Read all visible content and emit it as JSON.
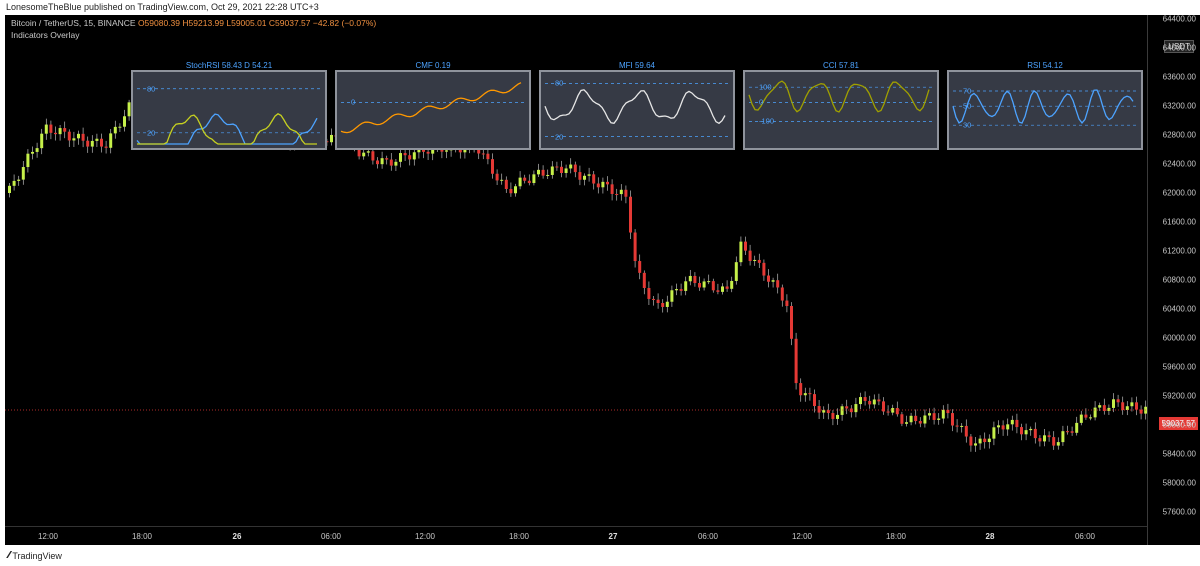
{
  "header": {
    "published": "LonesomeTheBlue published on TradingView.com, Oct 29, 2021 22:28 UTC+3"
  },
  "legend": {
    "symbol": "Bitcoin / TetherUS, 15, BINANCE",
    "open": "O59080.39",
    "high": "H59213.99",
    "low": "L59005.01",
    "close": "C59037.57",
    "change": "−42.82 (−0.07%)",
    "indicators": "Indicators Overlay"
  },
  "price_axis": {
    "currency": "USDT",
    "labels": [
      "64400.00",
      "64000.00",
      "63600.00",
      "63200.00",
      "62800.00",
      "62400.00",
      "62000.00",
      "61600.00",
      "61200.00",
      "60800.00",
      "60400.00",
      "60000.00",
      "59600.00",
      "59200.00",
      "58800.00",
      "58400.00",
      "58000.00",
      "57600.00"
    ],
    "current_price": "59037.57"
  },
  "time_axis": {
    "labels": [
      {
        "text": "12:00",
        "bold": false
      },
      {
        "text": "18:00",
        "bold": false
      },
      {
        "text": "26",
        "bold": true
      },
      {
        "text": "06:00",
        "bold": false
      },
      {
        "text": "12:00",
        "bold": false
      },
      {
        "text": "18:00",
        "bold": false
      },
      {
        "text": "27",
        "bold": true
      },
      {
        "text": "06:00",
        "bold": false
      },
      {
        "text": "12:00",
        "bold": false
      },
      {
        "text": "18:00",
        "bold": false
      },
      {
        "text": "28",
        "bold": true
      },
      {
        "text": "06:00",
        "bold": false
      }
    ]
  },
  "panels": [
    {
      "title": "StochRSI 58.43 D 54.21",
      "levels": [
        "80",
        "20"
      ]
    },
    {
      "title": "CMF 0.19",
      "levels": [
        "0"
      ]
    },
    {
      "title": "MFI 59.64",
      "levels": [
        "80",
        "20"
      ]
    },
    {
      "title": "CCI 57.81",
      "levels": [
        "100",
        "0",
        "-100"
      ]
    },
    {
      "title": "RSI 54.12",
      "levels": [
        "70",
        "50",
        "30"
      ]
    }
  ],
  "footer": {
    "brand": "TradingView"
  },
  "colors": {
    "up": "#c6f04a",
    "down": "#e53935",
    "accent": "#4da3ff",
    "background": "#000000"
  }
}
